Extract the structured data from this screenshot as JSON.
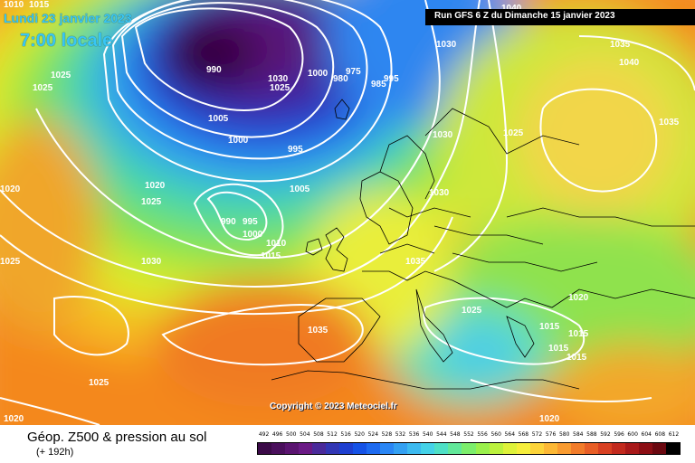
{
  "header": {
    "date": "Lundi 23 janvier 2023",
    "time": "7:00 locale",
    "run": "Run GFS 6 Z du Dimanche 15 janvier 2023"
  },
  "map": {
    "copyright": "Copyright © 2023 Meteociel.fr",
    "pressure_labels": [
      "1005",
      "1010",
      "1015",
      "1020",
      "1025",
      "1030",
      "1035",
      "1040",
      "990",
      "1000",
      "975",
      "980",
      "985",
      "995"
    ]
  },
  "legend": {
    "title": "Géop. Z500 & pression au sol",
    "forecast_hour": "(+ 192h)",
    "scale_values": [
      "492",
      "496",
      "500",
      "504",
      "508",
      "512",
      "516",
      "520",
      "524",
      "528",
      "532",
      "536",
      "540",
      "544",
      "548",
      "552",
      "556",
      "560",
      "564",
      "568",
      "572",
      "576",
      "580",
      "584",
      "588",
      "592",
      "596",
      "600",
      "604",
      "608",
      "612"
    ],
    "scale_colors": [
      "#3b0a48",
      "#4a0f5c",
      "#5a1470",
      "#6a1a85",
      "#4a2a9a",
      "#3236b4",
      "#1e3fd0",
      "#1552e6",
      "#1d6af0",
      "#2a86f5",
      "#33a0f2",
      "#3cbaf0",
      "#44d2e8",
      "#4ee0c6",
      "#62e89a",
      "#7cee6c",
      "#9af04c",
      "#bcf23e",
      "#def23a",
      "#f6ee3c",
      "#fcd43a",
      "#fcb835",
      "#f99b30",
      "#f27c2a",
      "#e85e26",
      "#d84022",
      "#c22a1e",
      "#a8191a",
      "#8c0e14",
      "#6a0810",
      "#000000"
    ]
  }
}
